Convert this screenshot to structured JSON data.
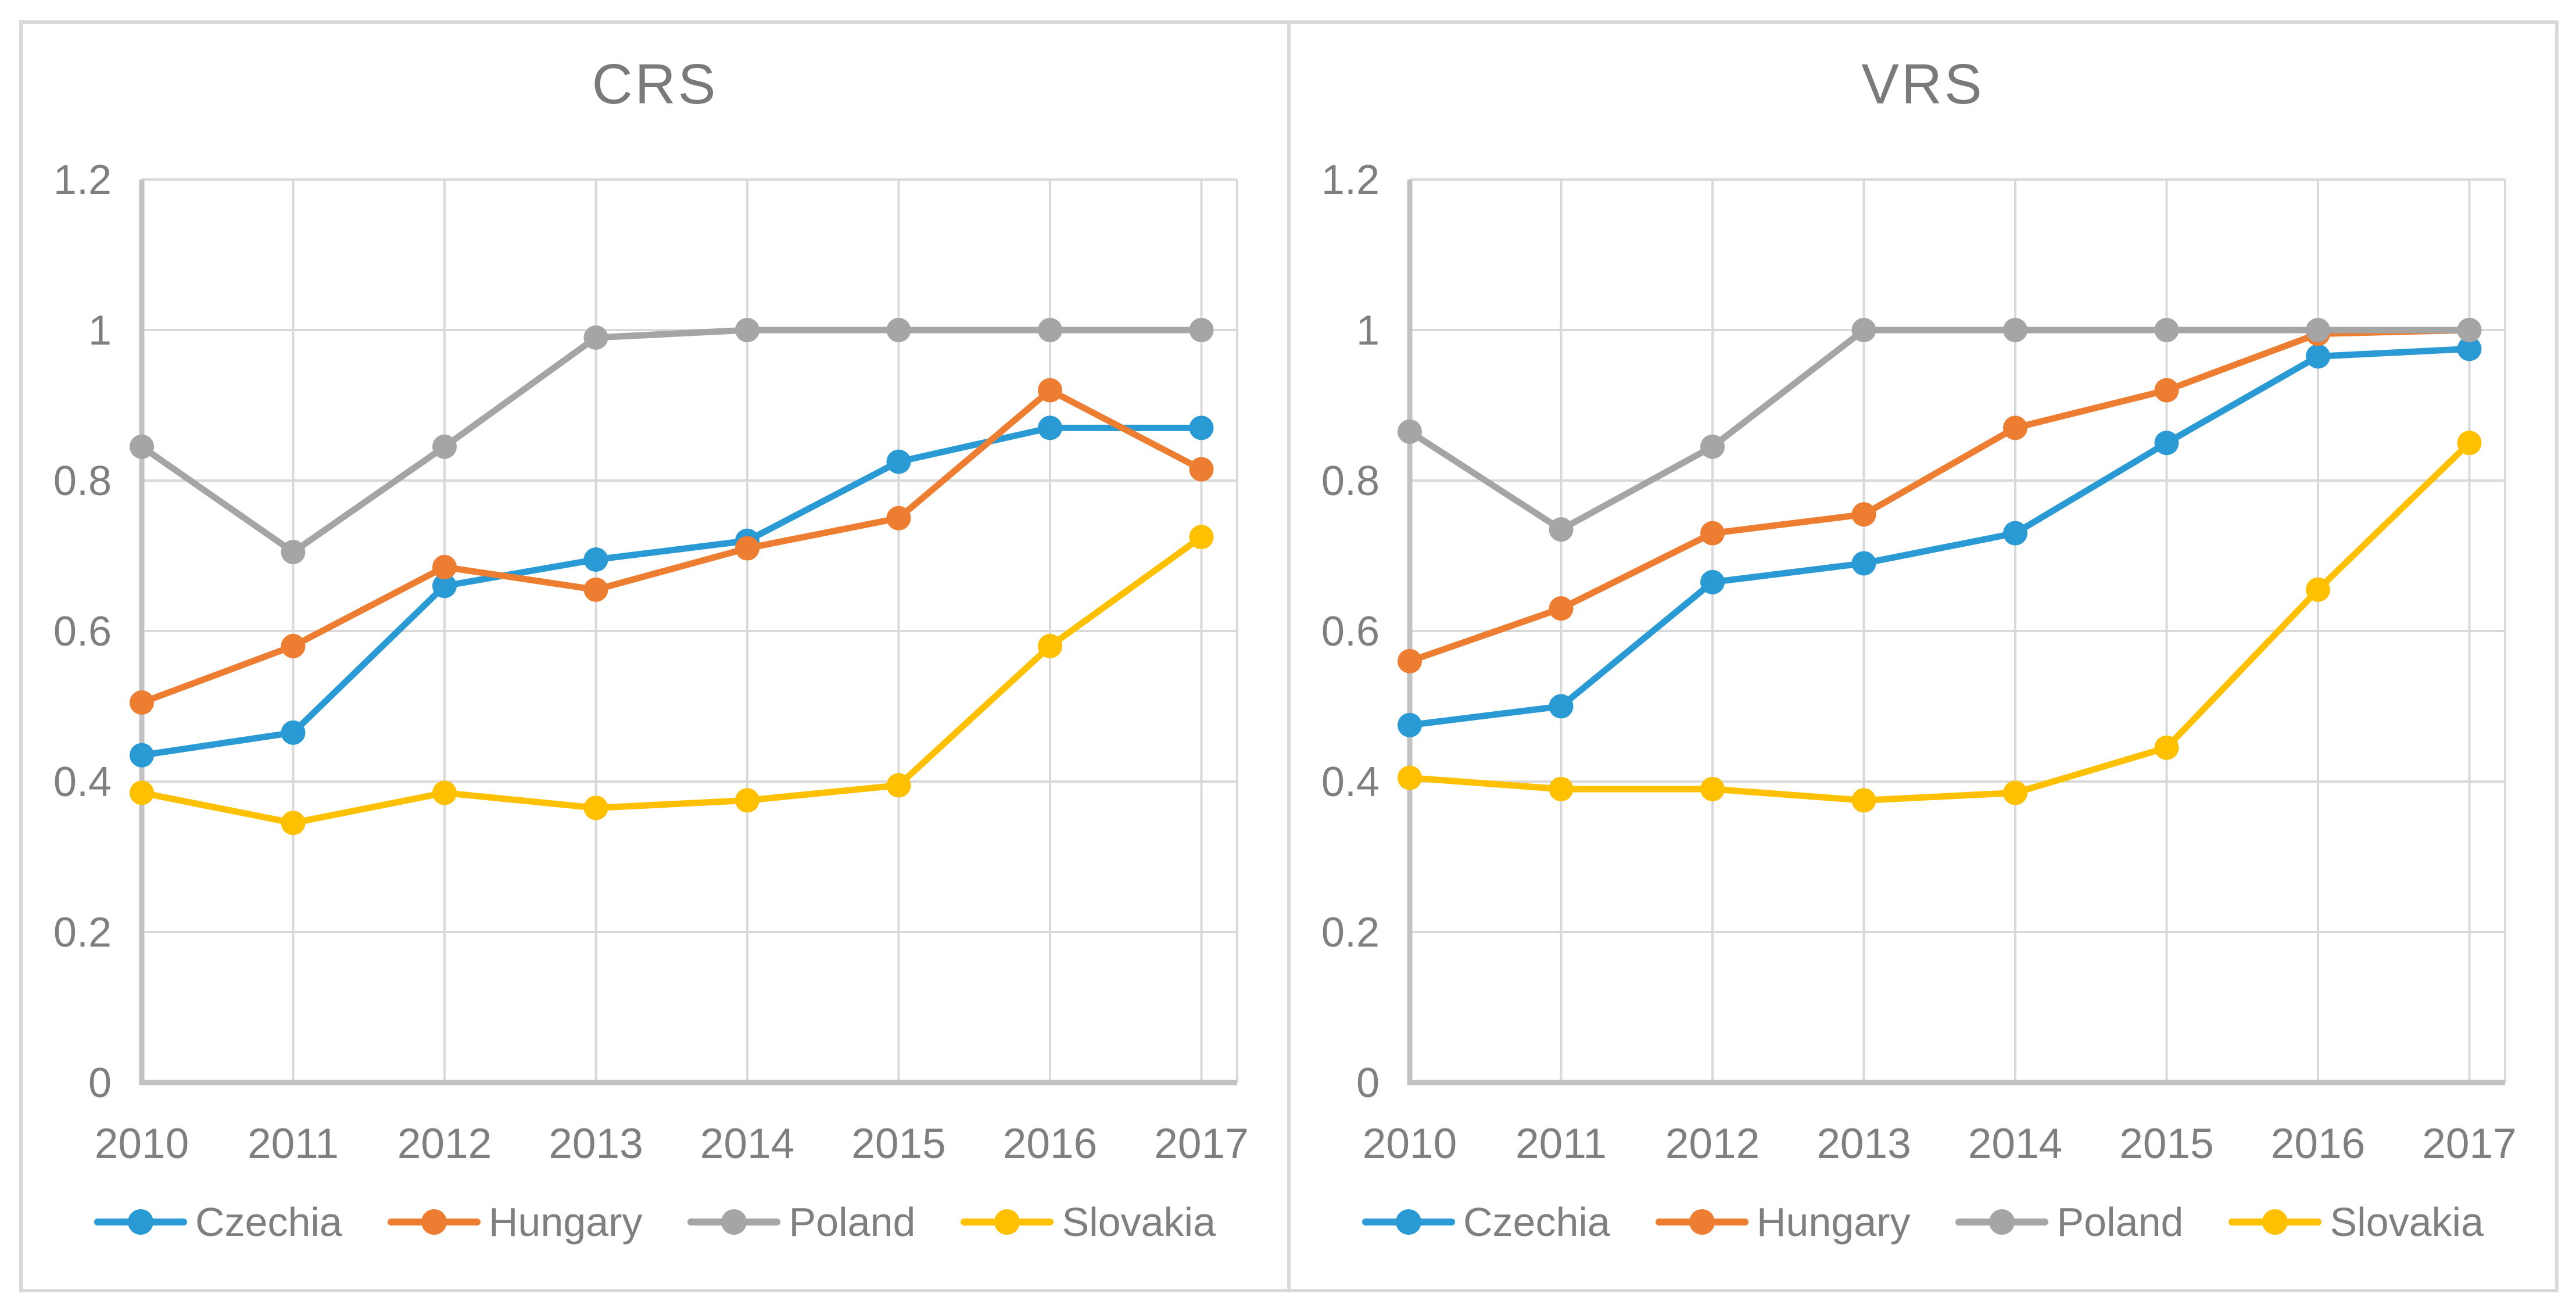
{
  "palette": {
    "grid": "#D9D9D9",
    "axis": "#C2C2C2",
    "frame": "#D9D9D9",
    "text": "#7F7F7F",
    "title": "#7A7A7A"
  },
  "y_axis": {
    "tick_labels": [
      "0",
      "0.2",
      "0.4",
      "0.6",
      "0.8",
      "1",
      "1.2"
    ],
    "tick_interval": 0.2
  },
  "chart_data": [
    {
      "type": "line",
      "title": "CRS",
      "x": [
        "2010",
        "2011",
        "2012",
        "2013",
        "2014",
        "2015",
        "2016",
        "2017"
      ],
      "ylim": [
        0,
        1.2
      ],
      "grid": true,
      "legend_position": "bottom",
      "series": [
        {
          "name": "Czechia",
          "color": "#2A9AD5",
          "values": [
            0.435,
            0.465,
            0.66,
            0.695,
            0.72,
            0.825,
            0.87,
            0.87
          ]
        },
        {
          "name": "Hungary",
          "color": "#ED7D31",
          "values": [
            0.505,
            0.58,
            0.685,
            0.655,
            0.71,
            0.75,
            0.92,
            0.815
          ]
        },
        {
          "name": "Poland",
          "color": "#A5A5A5",
          "values": [
            0.845,
            0.705,
            0.845,
            0.99,
            1.0,
            1.0,
            1.0,
            1.0
          ]
        },
        {
          "name": "Slovakia",
          "color": "#FFC000",
          "values": [
            0.385,
            0.345,
            0.385,
            0.365,
            0.375,
            0.395,
            0.58,
            0.725
          ]
        }
      ]
    },
    {
      "type": "line",
      "title": "VRS",
      "x": [
        "2010",
        "2011",
        "2012",
        "2013",
        "2014",
        "2015",
        "2016",
        "2017"
      ],
      "ylim": [
        0,
        1.2
      ],
      "grid": true,
      "legend_position": "bottom",
      "series": [
        {
          "name": "Czechia",
          "color": "#2A9AD5",
          "values": [
            0.475,
            0.5,
            0.665,
            0.69,
            0.73,
            0.85,
            0.965,
            0.975
          ]
        },
        {
          "name": "Hungary",
          "color": "#ED7D31",
          "values": [
            0.56,
            0.63,
            0.73,
            0.755,
            0.87,
            0.92,
            0.995,
            1.0
          ]
        },
        {
          "name": "Poland",
          "color": "#A5A5A5",
          "values": [
            0.865,
            0.735,
            0.845,
            1.0,
            1.0,
            1.0,
            1.0,
            1.0
          ]
        },
        {
          "name": "Slovakia",
          "color": "#FFC000",
          "values": [
            0.405,
            0.39,
            0.39,
            0.375,
            0.385,
            0.445,
            0.655,
            0.85
          ]
        }
      ]
    }
  ]
}
